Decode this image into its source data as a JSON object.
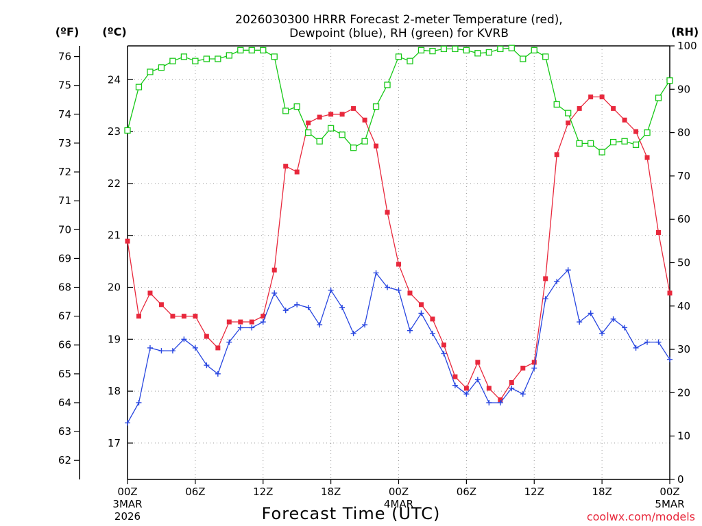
{
  "chart_data": {
    "type": "line",
    "title_line1": "2026030300 HRRR Forecast 2-meter Temperature (red),",
    "title_line2": "Dewpoint (blue), RH (green) for KVRB",
    "xlabel": "Forecast Time (UTC)",
    "credit": "coolwx.com/models",
    "unit_left_f": "(ºF)",
    "unit_left_c": "(ºC)",
    "unit_right": "(RH)",
    "x_range": [
      0,
      48
    ],
    "x_ticks": [
      {
        "x": 0,
        "label": "00Z",
        "sub1": "3MAR",
        "sub2": "2026"
      },
      {
        "x": 6,
        "label": "06Z",
        "sub1": "",
        "sub2": ""
      },
      {
        "x": 12,
        "label": "12Z",
        "sub1": "",
        "sub2": ""
      },
      {
        "x": 18,
        "label": "18Z",
        "sub1": "",
        "sub2": ""
      },
      {
        "x": 24,
        "label": "00Z",
        "sub1": "4MAR",
        "sub2": ""
      },
      {
        "x": 30,
        "label": "06Z",
        "sub1": "",
        "sub2": ""
      },
      {
        "x": 36,
        "label": "12Z",
        "sub1": "",
        "sub2": ""
      },
      {
        "x": 42,
        "label": "18Z",
        "sub1": "",
        "sub2": ""
      },
      {
        "x": 48,
        "label": "00Z",
        "sub1": "5MAR",
        "sub2": ""
      }
    ],
    "y_range_c": [
      16.3,
      24.65
    ],
    "y_ticks_c": [
      17,
      18,
      19,
      20,
      21,
      22,
      23,
      24
    ],
    "y_range_f": [
      61.3,
      76.4
    ],
    "y_ticks_f": [
      62,
      63,
      64,
      65,
      66,
      67,
      68,
      69,
      70,
      71,
      72,
      73,
      74,
      75,
      76
    ],
    "y_range_rh": [
      0,
      100
    ],
    "y_ticks_rh": [
      0,
      10,
      20,
      30,
      40,
      50,
      60,
      70,
      80,
      90,
      100
    ],
    "series": [
      {
        "name": "Temperature",
        "units": "F",
        "color": "#e8283c",
        "marker": "filled-square",
        "x": [
          0,
          1,
          2,
          3,
          4,
          5,
          6,
          7,
          8,
          9,
          10,
          11,
          12,
          13,
          14,
          15,
          16,
          17,
          18,
          19,
          20,
          21,
          22,
          23,
          24,
          25,
          26,
          27,
          28,
          29,
          30,
          31,
          32,
          33,
          34,
          35,
          36,
          37,
          38,
          39,
          40,
          41,
          42,
          43,
          44,
          45,
          46,
          47,
          48
        ],
        "values": [
          69.6,
          67.0,
          67.8,
          67.4,
          67.0,
          67.0,
          67.0,
          66.3,
          65.9,
          66.8,
          66.8,
          66.8,
          67.0,
          68.6,
          72.2,
          72.0,
          73.7,
          73.9,
          74.0,
          74.0,
          74.2,
          73.8,
          72.9,
          70.6,
          68.8,
          67.8,
          67.4,
          66.9,
          66.0,
          64.9,
          64.5,
          65.4,
          64.5,
          64.1,
          64.7,
          65.2,
          65.4,
          68.3,
          72.6,
          73.7,
          74.2,
          74.6,
          74.6,
          74.2,
          73.8,
          73.4,
          72.5,
          69.9,
          67.8
        ]
      },
      {
        "name": "Dewpoint",
        "units": "F",
        "color": "#2846e0",
        "marker": "plus",
        "x": [
          0,
          1,
          2,
          3,
          4,
          5,
          6,
          7,
          8,
          9,
          10,
          11,
          12,
          13,
          14,
          15,
          16,
          17,
          18,
          19,
          20,
          21,
          22,
          23,
          24,
          25,
          26,
          27,
          28,
          29,
          30,
          31,
          32,
          33,
          34,
          35,
          36,
          37,
          38,
          39,
          40,
          41,
          42,
          43,
          44,
          45,
          46,
          47,
          48
        ],
        "values": [
          63.3,
          64.0,
          65.9,
          65.8,
          65.8,
          66.2,
          65.9,
          65.3,
          65.0,
          66.1,
          66.6,
          66.6,
          66.8,
          67.8,
          67.2,
          67.4,
          67.3,
          66.7,
          67.9,
          67.3,
          66.4,
          66.7,
          68.5,
          68.0,
          67.9,
          66.5,
          67.1,
          66.4,
          65.7,
          64.6,
          64.3,
          64.8,
          64.0,
          64.0,
          64.5,
          64.3,
          65.2,
          67.6,
          68.2,
          68.6,
          66.8,
          67.1,
          66.4,
          66.9,
          66.6,
          65.9,
          66.1,
          66.1,
          65.5
        ]
      },
      {
        "name": "RH",
        "units": "%",
        "color": "#16c816",
        "marker": "open-square",
        "x": [
          0,
          1,
          2,
          3,
          4,
          5,
          6,
          7,
          8,
          9,
          10,
          11,
          12,
          13,
          14,
          15,
          16,
          17,
          18,
          19,
          20,
          21,
          22,
          23,
          24,
          25,
          26,
          27,
          28,
          29,
          30,
          31,
          32,
          33,
          34,
          35,
          36,
          37,
          38,
          39,
          40,
          41,
          42,
          43,
          44,
          45,
          46,
          47,
          48
        ],
        "values": [
          80.5,
          90.5,
          94.0,
          95.0,
          96.5,
          97.5,
          96.5,
          97.0,
          97.0,
          97.8,
          99.0,
          99.0,
          99.0,
          97.5,
          85.0,
          86.0,
          80.0,
          78.0,
          81.0,
          79.5,
          76.5,
          78.0,
          86.0,
          91.0,
          97.5,
          96.5,
          99.0,
          98.8,
          99.3,
          99.3,
          99.0,
          98.3,
          98.5,
          99.3,
          99.5,
          97.0,
          99.0,
          97.5,
          86.5,
          84.5,
          77.5,
          77.5,
          75.5,
          77.8,
          78.0,
          77.2,
          80.0,
          88.0,
          92.0
        ]
      }
    ]
  }
}
